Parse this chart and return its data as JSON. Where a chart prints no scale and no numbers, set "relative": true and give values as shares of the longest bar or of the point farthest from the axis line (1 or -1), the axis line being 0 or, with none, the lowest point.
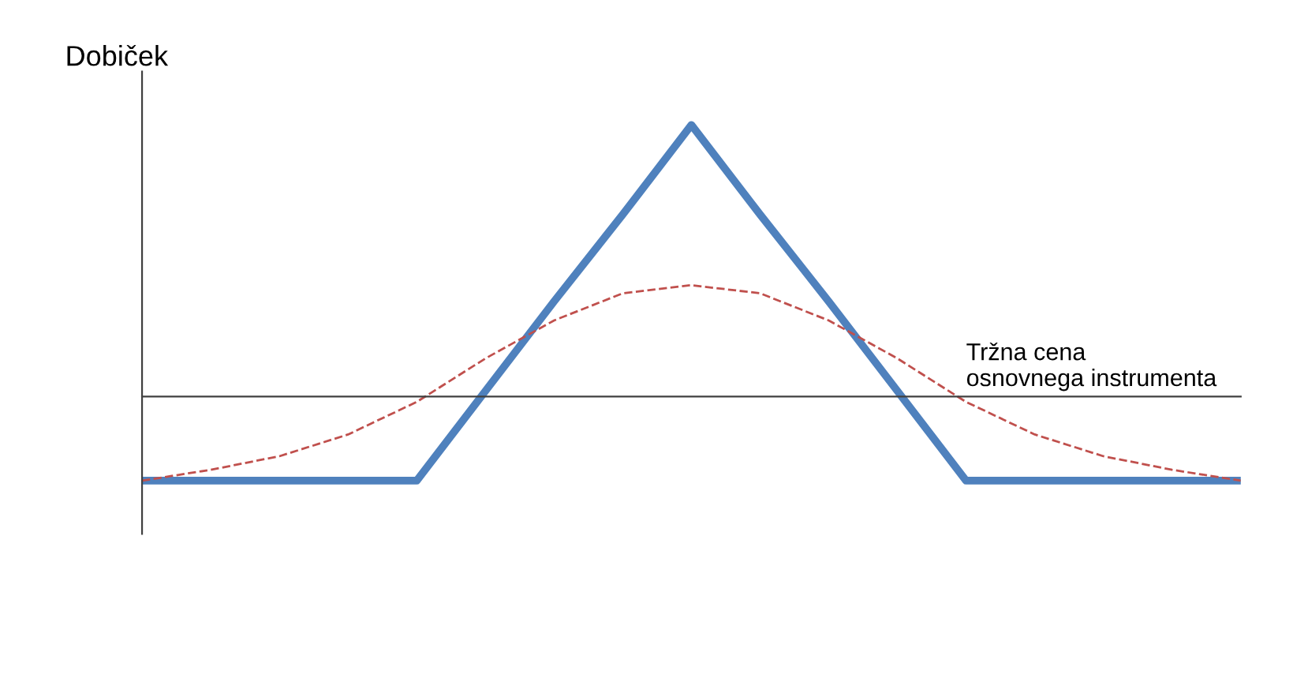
{
  "chart_data": {
    "type": "line",
    "relative": true,
    "ylabel": "Dobiček",
    "xlabel": "Tržna cena\nosnovnega instrumenta",
    "categories": [
      null,
      null,
      null,
      null,
      null,
      null,
      null,
      null,
      null,
      null,
      null,
      null,
      null,
      null,
      null,
      null,
      null
    ],
    "series": [
      {
        "color": "#4f81bd",
        "line_style": "solid",
        "values": [
          -0.31,
          -0.31,
          -0.31,
          -0.31,
          -0.31,
          0.02,
          0.35,
          0.67,
          1,
          0.67,
          0.35,
          0.02,
          -0.31,
          -0.31,
          -0.31,
          -0.31,
          -0.31
        ]
      },
      {
        "color": "#c0504d",
        "line_style": "dashed",
        "values": [
          -0.31,
          -0.27,
          -0.22,
          -0.14,
          -0.02,
          0.14,
          0.28,
          0.38,
          0.41,
          0.38,
          0.28,
          0.14,
          -0.02,
          -0.14,
          -0.22,
          -0.27,
          -0.31
        ]
      }
    ],
    "legend": false
  }
}
